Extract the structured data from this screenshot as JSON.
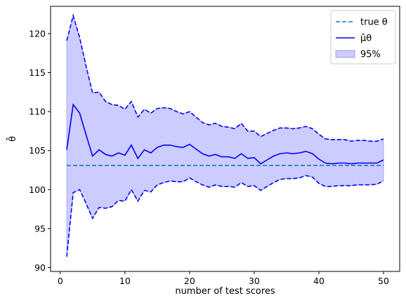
{
  "chart_data": {
    "type": "line",
    "xlabel": "number of test scores",
    "ylabel": "θ̂",
    "xlim": [
      -1.5,
      52.5
    ],
    "ylim": [
      89.5,
      123.5
    ],
    "xticks": [
      0,
      10,
      20,
      30,
      40,
      50
    ],
    "yticks": [
      90,
      95,
      100,
      105,
      110,
      115,
      120
    ],
    "grid": false,
    "legend_position": "top-right",
    "x": [
      1,
      2,
      3,
      4,
      5,
      6,
      7,
      8,
      9,
      10,
      11,
      12,
      13,
      14,
      15,
      16,
      17,
      18,
      19,
      20,
      21,
      22,
      23,
      24,
      25,
      26,
      27,
      28,
      29,
      30,
      31,
      32,
      33,
      34,
      35,
      36,
      37,
      38,
      39,
      40,
      41,
      42,
      43,
      44,
      45,
      46,
      47,
      48,
      49,
      50
    ],
    "series": [
      {
        "name": "true θ",
        "kind": "hline",
        "value": 103.1,
        "color": "#1f77b4",
        "style": "dashed"
      },
      {
        "name": "μ̂θ",
        "kind": "line",
        "color": "#0000ff",
        "style": "solid",
        "values": [
          105.1,
          110.9,
          109.8,
          107.0,
          104.3,
          105.1,
          104.5,
          104.3,
          104.7,
          104.4,
          105.7,
          104.0,
          105.1,
          104.7,
          105.4,
          105.7,
          105.7,
          105.5,
          105.4,
          105.8,
          105.2,
          104.6,
          104.3,
          104.5,
          104.2,
          104.2,
          104.0,
          104.6,
          104.0,
          104.1,
          103.3,
          103.8,
          104.3,
          104.6,
          104.7,
          104.6,
          104.7,
          104.9,
          104.6,
          103.9,
          103.4,
          103.3,
          103.4,
          103.4,
          103.3,
          103.4,
          103.4,
          103.4,
          103.4,
          103.8
        ]
      },
      {
        "name": "95%",
        "kind": "band",
        "color": "#0000ff",
        "upper": [
          119.1,
          122.3,
          119.5,
          115.8,
          112.4,
          112.5,
          111.3,
          110.9,
          110.8,
          110.3,
          111.3,
          109.3,
          110.3,
          109.8,
          110.4,
          110.5,
          110.4,
          110.0,
          109.7,
          110.0,
          109.3,
          108.6,
          108.3,
          108.5,
          108.1,
          108.0,
          107.8,
          108.5,
          107.5,
          107.5,
          106.8,
          107.2,
          107.6,
          107.9,
          107.9,
          107.8,
          107.9,
          108.1,
          107.8,
          107.1,
          106.5,
          106.4,
          106.4,
          106.4,
          106.2,
          106.3,
          106.3,
          106.2,
          106.2,
          106.5
        ],
        "lower": [
          91.4,
          99.6,
          100.0,
          98.2,
          96.3,
          97.7,
          97.6,
          97.8,
          98.6,
          98.5,
          100.0,
          98.5,
          99.9,
          99.7,
          100.6,
          100.9,
          101.1,
          101.0,
          101.0,
          101.5,
          101.0,
          100.6,
          100.3,
          100.6,
          100.4,
          100.4,
          100.3,
          100.9,
          100.4,
          100.5,
          99.9,
          100.4,
          100.9,
          101.3,
          101.4,
          101.4,
          101.5,
          101.8,
          101.6,
          100.8,
          100.4,
          100.4,
          100.5,
          100.5,
          100.5,
          100.6,
          100.6,
          100.6,
          100.7,
          101.1
        ]
      }
    ]
  }
}
